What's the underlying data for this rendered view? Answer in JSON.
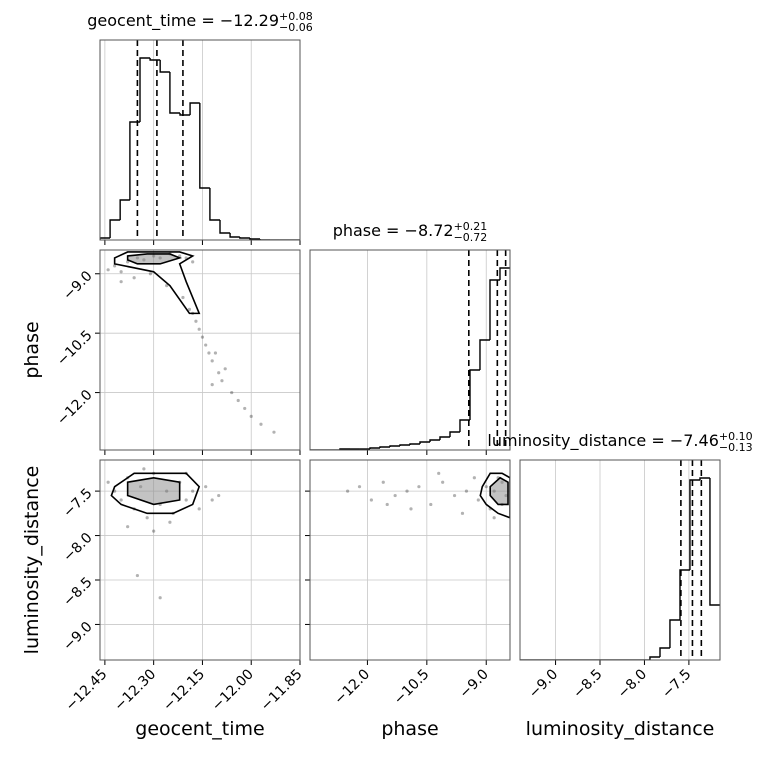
{
  "chart_data": {
    "type": "corner",
    "parameters": [
      {
        "label": "geocent_time",
        "title_main": "geocent_time = −12.29",
        "title_plus": "+0.08",
        "title_minus": "−0.06",
        "range": [
          -12.465,
          -11.85
        ],
        "ticks": [
          {
            "value": -12.45,
            "label": "−12.45"
          },
          {
            "value": -12.3,
            "label": "−12.30"
          },
          {
            "value": -12.15,
            "label": "−12.15"
          },
          {
            "value": -12.0,
            "label": "−12.00"
          },
          {
            "value": -11.85,
            "label": "−11.85"
          }
        ],
        "bins": [
          -12.465,
          -12.434,
          -12.403,
          -12.373,
          -12.342,
          -12.311,
          -12.28,
          -12.25,
          -12.219,
          -12.188,
          -12.158,
          -12.127,
          -12.096,
          -12.065,
          -12.035,
          -12.004,
          -11.973,
          -11.942,
          -11.912,
          -11.881,
          -11.85
        ],
        "counts": [
          2,
          20,
          40,
          118,
          182,
          180,
          168,
          127,
          125,
          137,
          52,
          20,
          7,
          3,
          2,
          1,
          0,
          0,
          0,
          0
        ],
        "hist_ylim": [
          0,
          200
        ],
        "quantiles": [
          -12.35,
          -12.29,
          -12.21
        ]
      },
      {
        "label": "phase",
        "title_main": "phase = −8.72",
        "title_plus": "+0.21",
        "title_minus": "−0.72",
        "range": [
          -13.45,
          -8.4
        ],
        "ticks": [
          {
            "value": -12.0,
            "label": "−12.0"
          },
          {
            "value": -10.5,
            "label": "−10.5"
          },
          {
            "value": -9.0,
            "label": "−9.0"
          }
        ],
        "bins": [
          -13.45,
          -13.198,
          -12.945,
          -12.693,
          -12.44,
          -12.188,
          -11.935,
          -11.683,
          -11.43,
          -11.178,
          -10.925,
          -10.673,
          -10.42,
          -10.168,
          -9.915,
          -9.663,
          -9.41,
          -9.158,
          -8.905,
          -8.653,
          -8.4
        ],
        "counts": [
          0,
          0,
          0,
          1,
          1,
          1,
          2,
          3,
          4,
          5,
          6,
          8,
          10,
          13,
          18,
          30,
          80,
          110,
          170,
          182
        ],
        "hist_ylim": [
          0,
          200
        ],
        "quantiles": [
          -9.44,
          -8.72,
          -8.51
        ]
      },
      {
        "label": "luminosity_distance",
        "title_main": "luminosity_distance = −7.46",
        "title_plus": "+0.10",
        "title_minus": "−0.13",
        "range": [
          -9.4,
          -7.15
        ],
        "ticks": [
          {
            "value": -9.0,
            "label": "−9.0"
          },
          {
            "value": -8.5,
            "label": "−8.5"
          },
          {
            "value": -8.0,
            "label": "−8.0"
          },
          {
            "value": -7.5,
            "label": "−7.5"
          }
        ],
        "bins": [
          -9.4,
          -9.288,
          -9.175,
          -9.063,
          -8.95,
          -8.838,
          -8.725,
          -8.613,
          -8.5,
          -8.388,
          -8.275,
          -8.163,
          -8.05,
          -7.938,
          -7.825,
          -7.713,
          -7.6,
          -7.488,
          -7.375,
          -7.263,
          -7.15
        ],
        "counts": [
          0,
          0,
          0,
          0,
          0,
          0,
          0,
          0,
          0,
          0,
          0,
          0,
          0,
          3,
          12,
          40,
          90,
          180,
          182,
          55
        ],
        "hist_ylim": [
          0,
          200
        ],
        "quantiles": [
          -7.59,
          -7.46,
          -7.36
        ]
      }
    ],
    "pairs": [
      {
        "points": {
          "x": [
            -12.44,
            -12.42,
            -12.4,
            -12.38,
            -12.35,
            -12.33,
            -12.3,
            -12.28,
            -12.25,
            -12.22,
            -12.2,
            -12.18,
            -12.4,
            -12.36,
            -12.31,
            -12.26,
            -12.21,
            -12.19,
            -12.17,
            -12.16,
            -12.15,
            -12.14,
            -12.13,
            -12.12,
            -12.11,
            -12.1,
            -12.09,
            -12.08,
            -12.06,
            -12.04,
            -12.02,
            -12.0,
            -11.97,
            -11.93,
            -12.12,
            -12.18
          ],
          "y": [
            -8.9,
            -8.8,
            -8.95,
            -8.7,
            -8.6,
            -8.65,
            -8.55,
            -8.6,
            -8.5,
            -8.55,
            -8.6,
            -8.7,
            -9.2,
            -9.1,
            -9.0,
            -9.3,
            -9.6,
            -9.9,
            -10.2,
            -10.4,
            -10.6,
            -10.8,
            -11.0,
            -11.2,
            -11.0,
            -11.5,
            -11.7,
            -11.4,
            -12.0,
            -12.2,
            -12.4,
            -12.6,
            -12.8,
            -13.0,
            -11.8,
            -10.0
          ]
        },
        "contours": [
          {
            "x": [
              -12.42,
              -12.38,
              -12.3,
              -12.22,
              -12.18,
              -12.22,
              -12.2,
              -12.16,
              -12.19,
              -12.25,
              -12.3,
              -12.36,
              -12.42
            ],
            "y": [
              -8.6,
              -8.45,
              -8.45,
              -8.45,
              -8.55,
              -8.75,
              -9.2,
              -10.0,
              -10.0,
              -9.3,
              -8.95,
              -8.85,
              -8.75
            ]
          },
          {
            "x": [
              -12.38,
              -12.32,
              -12.25,
              -12.22,
              -12.28,
              -12.35,
              -12.38
            ],
            "y": [
              -8.55,
              -8.5,
              -8.5,
              -8.6,
              -8.75,
              -8.75,
              -8.65
            ]
          }
        ]
      },
      {
        "points": {
          "x": [
            -12.44,
            -12.42,
            -12.4,
            -12.38,
            -12.36,
            -12.34,
            -12.32,
            -12.3,
            -12.28,
            -12.26,
            -12.24,
            -12.22,
            -12.2,
            -12.18,
            -12.16,
            -12.14,
            -12.12,
            -12.38,
            -12.3,
            -12.25,
            -12.35,
            -12.28,
            -12.2,
            -12.1,
            -12.33
          ],
          "y": [
            -7.4,
            -7.5,
            -7.6,
            -7.35,
            -7.7,
            -7.45,
            -7.8,
            -7.3,
            -7.65,
            -7.5,
            -7.75,
            -7.4,
            -7.6,
            -7.5,
            -7.7,
            -7.45,
            -7.6,
            -7.9,
            -7.95,
            -7.85,
            -8.45,
            -8.7,
            -7.3,
            -7.55,
            -7.25
          ]
        },
        "contours": [
          {
            "x": [
              -12.42,
              -12.36,
              -12.28,
              -12.2,
              -12.16,
              -12.18,
              -12.24,
              -12.32,
              -12.4,
              -12.43
            ],
            "y": [
              -7.45,
              -7.3,
              -7.3,
              -7.3,
              -7.45,
              -7.65,
              -7.75,
              -7.75,
              -7.65,
              -7.55
            ]
          },
          {
            "x": [
              -12.38,
              -12.3,
              -12.22,
              -12.22,
              -12.3,
              -12.38
            ],
            "y": [
              -7.4,
              -7.35,
              -7.4,
              -7.6,
              -7.65,
              -7.55
            ]
          }
        ]
      },
      {
        "points": {
          "x": [
            -12.5,
            -12.2,
            -11.9,
            -11.6,
            -11.3,
            -11.0,
            -10.7,
            -10.4,
            -10.1,
            -9.8,
            -9.5,
            -9.2,
            -9.0,
            -8.9,
            -8.8,
            -8.7,
            -8.6,
            -8.5,
            -10.9,
            -10.2,
            -9.6,
            -11.5,
            -9.3,
            -8.8,
            -8.6
          ],
          "y": [
            -7.5,
            -7.45,
            -7.6,
            -7.4,
            -7.55,
            -7.5,
            -7.45,
            -7.65,
            -7.4,
            -7.55,
            -7.5,
            -7.6,
            -7.45,
            -7.7,
            -7.5,
            -7.35,
            -7.65,
            -7.55,
            -7.7,
            -7.3,
            -7.75,
            -7.65,
            -7.35,
            -7.8,
            -7.4
          ]
        },
        "contours": [
          {
            "x": [
              -9.1,
              -8.9,
              -8.6,
              -8.4,
              -8.4,
              -8.7,
              -9.0,
              -9.15
            ],
            "y": [
              -7.45,
              -7.3,
              -7.3,
              -7.35,
              -7.8,
              -7.75,
              -7.65,
              -7.55
            ]
          },
          {
            "x": [
              -8.9,
              -8.65,
              -8.45,
              -8.45,
              -8.7,
              -8.9
            ],
            "y": [
              -7.45,
              -7.35,
              -7.4,
              -7.65,
              -7.65,
              -7.55
            ]
          }
        ]
      }
    ]
  }
}
